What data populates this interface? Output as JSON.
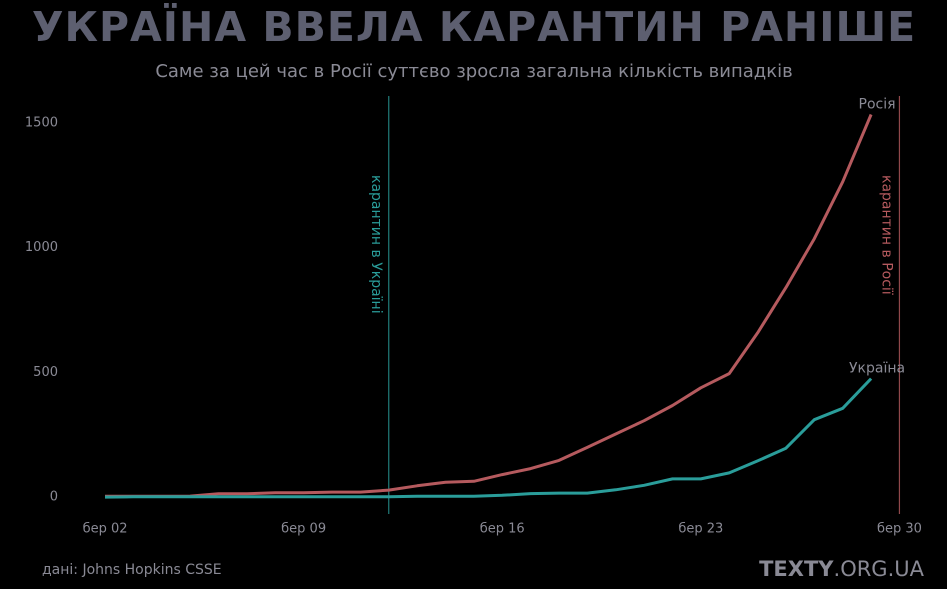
{
  "chart_data": {
    "type": "line",
    "title": "УКРАЇНА ВВЕЛА КАРАНТИН РАНІШЕ",
    "subtitle": "Саме за цей час в Росії суттєво зросла загальна кількість випадків",
    "x": [
      2,
      3,
      4,
      5,
      6,
      7,
      8,
      9,
      10,
      11,
      12,
      13,
      14,
      15,
      16,
      17,
      18,
      19,
      20,
      21,
      22,
      23,
      24,
      25,
      26,
      27,
      28,
      29
    ],
    "series": [
      {
        "name": "Росія",
        "color": "#b55a5e",
        "values": [
          3,
          3,
          3,
          4,
          13,
          13,
          17,
          17,
          20,
          20,
          28,
          45,
          59,
          63,
          90,
          114,
          147,
          199,
          253,
          306,
          367,
          438,
          495,
          658,
          840,
          1036,
          1264,
          1534
        ]
      },
      {
        "name": "Україна",
        "color": "#2a9d9a",
        "values": [
          0,
          1,
          1,
          1,
          1,
          1,
          1,
          1,
          1,
          1,
          1,
          3,
          3,
          3,
          7,
          14,
          16,
          16,
          29,
          47,
          73,
          73,
          97,
          145,
          196,
          310,
          356,
          475
        ]
      }
    ],
    "xlim": [
      0,
      31
    ],
    "xticks": [
      {
        "value": 2,
        "label": "бер 02"
      },
      {
        "value": 9,
        "label": "бер 09"
      },
      {
        "value": 16,
        "label": "бер 16"
      },
      {
        "value": 23,
        "label": "бер 23"
      },
      {
        "value": 30,
        "label": "бер 30"
      }
    ],
    "ylim": [
      -100,
      1600
    ],
    "yticks": [
      0,
      500,
      1000,
      1500
    ],
    "grid": false,
    "annotations": [
      {
        "text": "карантин в Україні",
        "x": 12,
        "color": "#2a9d9a"
      },
      {
        "text": "карантин в Росії",
        "x": 30,
        "color": "#b55a5e"
      }
    ],
    "source": "дані: Johns Hopkins CSSE",
    "logo_bold": "TEXTY",
    "logo_rest": ".ORG.UA"
  }
}
